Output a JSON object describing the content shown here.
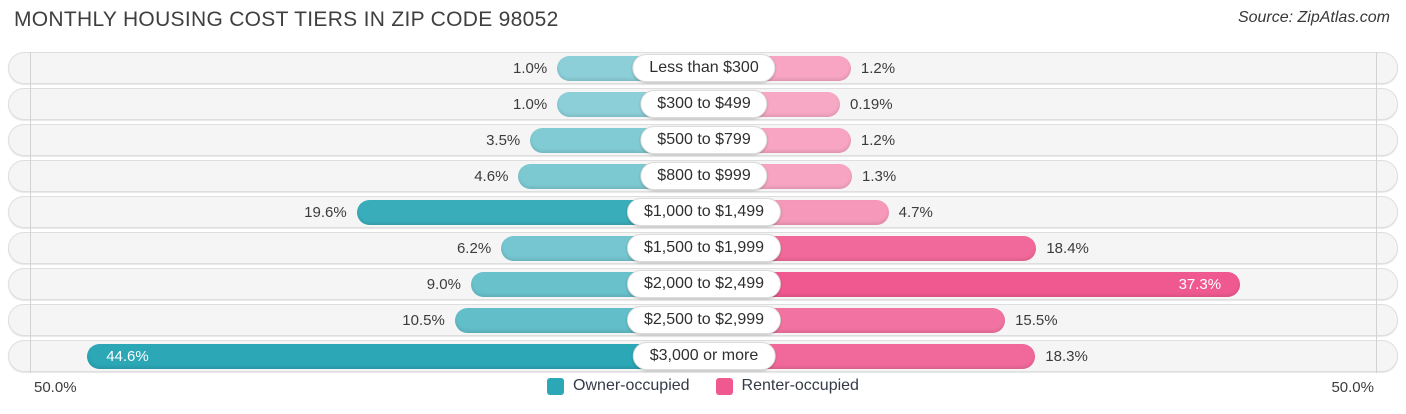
{
  "header": {
    "title": "MONTHLY HOUSING COST TIERS IN ZIP CODE 98052",
    "source": "Source: ZipAtlas.com"
  },
  "axis": {
    "left_label": "50.0%",
    "right_label": "50.0%",
    "max_percent": 50.0
  },
  "legend": {
    "items": [
      {
        "label": "Owner-occupied",
        "color": "#2BA7B6"
      },
      {
        "label": "Renter-occupied",
        "color": "#F0598F"
      }
    ]
  },
  "chart_data": {
    "type": "bar",
    "orientation": "diverging-horizontal",
    "title": "MONTHLY HOUSING COST TIERS IN ZIP CODE 98052",
    "xlim": [
      -50,
      50
    ],
    "grid": "outer-boundaries-only",
    "legend_position": "bottom-center",
    "categories": [
      "Less than $300",
      "$300 to $499",
      "$500 to $799",
      "$800 to $999",
      "$1,000 to $1,499",
      "$1,500 to $1,999",
      "$2,000 to $2,499",
      "$2,500 to $2,999",
      "$3,000 or more"
    ],
    "series": [
      {
        "name": "Owner-occupied",
        "side": "left",
        "color": "#2BA7B6",
        "values": [
          1.0,
          1.0,
          3.5,
          4.6,
          19.6,
          6.2,
          9.0,
          10.5,
          44.6
        ],
        "labels": [
          "1.0%",
          "1.0%",
          "3.5%",
          "4.6%",
          "19.6%",
          "6.2%",
          "9.0%",
          "10.5%",
          "44.6%"
        ]
      },
      {
        "name": "Renter-occupied",
        "side": "right",
        "color": "#F0598F",
        "values": [
          1.2,
          0.19,
          1.2,
          1.3,
          4.7,
          18.4,
          37.3,
          15.5,
          18.3
        ],
        "labels": [
          "1.2%",
          "0.19%",
          "1.2%",
          "1.3%",
          "4.7%",
          "18.4%",
          "37.3%",
          "15.5%",
          "18.3%"
        ]
      }
    ]
  }
}
